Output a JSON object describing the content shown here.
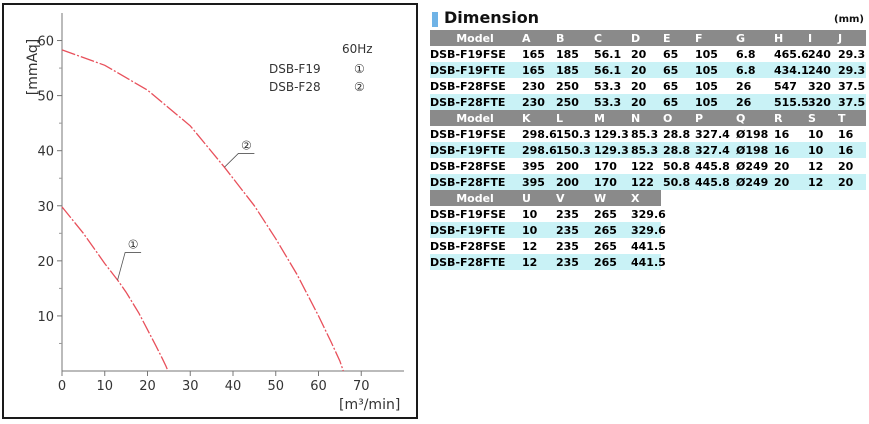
{
  "chart_data": {
    "type": "line",
    "xlabel": "[m³/min]",
    "ylabel": "[mmAq]",
    "xlim": [
      0,
      80
    ],
    "ylim": [
      0,
      65
    ],
    "xticks": [
      0,
      10,
      20,
      30,
      40,
      50,
      60,
      70
    ],
    "yticks": [
      10,
      20,
      30,
      40,
      50,
      60
    ],
    "frequency_label": "60Hz",
    "legend": [
      {
        "model": "DSB-F19",
        "marker": "①"
      },
      {
        "model": "DSB-F28",
        "marker": "②"
      }
    ],
    "series": [
      {
        "name": "①",
        "color": "#e8505b",
        "x": [
          0,
          5,
          10,
          13,
          15,
          18,
          20,
          22,
          23.5,
          24.3,
          24.8
        ],
        "y": [
          29.8,
          25,
          19.5,
          16.5,
          14.3,
          10.5,
          7.5,
          4.5,
          2.2,
          0.9,
          0
        ]
      },
      {
        "name": "②",
        "color": "#e8505b",
        "x": [
          0,
          10,
          20,
          30,
          38,
          45,
          50,
          55,
          60,
          63,
          65,
          65.8
        ],
        "y": [
          58.3,
          55.5,
          51,
          44.5,
          37,
          30,
          24,
          17.5,
          10,
          5.2,
          1.8,
          0
        ]
      }
    ]
  },
  "dimension": {
    "title": "Dimension",
    "unit": "(mm)",
    "sections": [
      {
        "headers": [
          "Model",
          "A",
          "B",
          "C",
          "D",
          "E",
          "F",
          "G",
          "H",
          "I",
          "J"
        ],
        "rows": [
          [
            "DSB-F19FSE",
            "165",
            "185",
            "56.1",
            "20",
            "65",
            "105",
            "6.8",
            "465.6",
            "240",
            "29.3"
          ],
          [
            "DSB-F19FTE",
            "165",
            "185",
            "56.1",
            "20",
            "65",
            "105",
            "6.8",
            "434.1",
            "240",
            "29.3"
          ],
          [
            "DSB-F28FSE",
            "230",
            "250",
            "53.3",
            "20",
            "65",
            "105",
            "26",
            "547",
            "320",
            "37.5"
          ],
          [
            "DSB-F28FTE",
            "230",
            "250",
            "53.3",
            "20",
            "65",
            "105",
            "26",
            "515.5",
            "320",
            "37.5"
          ]
        ]
      },
      {
        "headers": [
          "Model",
          "K",
          "L",
          "M",
          "N",
          "O",
          "P",
          "Q",
          "R",
          "S",
          "T"
        ],
        "rows": [
          [
            "DSB-F19FSE",
            "298.6",
            "150.3",
            "129.3",
            "85.3",
            "28.8",
            "327.4",
            "Ø198",
            "16",
            "10",
            "16"
          ],
          [
            "DSB-F19FTE",
            "298.6",
            "150.3",
            "129.3",
            "85.3",
            "28.8",
            "327.4",
            "Ø198",
            "16",
            "10",
            "16"
          ],
          [
            "DSB-F28FSE",
            "395",
            "200",
            "170",
            "122",
            "50.8",
            "445.8",
            "Ø249",
            "20",
            "12",
            "20"
          ],
          [
            "DSB-F28FTE",
            "395",
            "200",
            "170",
            "122",
            "50.8",
            "445.8",
            "Ø249",
            "20",
            "12",
            "20"
          ]
        ]
      },
      {
        "headers": [
          "Model",
          "U",
          "V",
          "W",
          "X"
        ],
        "rows": [
          [
            "DSB-F19FSE",
            "10",
            "235",
            "265",
            "329.6"
          ],
          [
            "DSB-F19FTE",
            "10",
            "235",
            "265",
            "329.6"
          ],
          [
            "DSB-F28FSE",
            "12",
            "235",
            "265",
            "441.5"
          ],
          [
            "DSB-F28FTE",
            "12",
            "235",
            "265",
            "441.5"
          ]
        ]
      }
    ]
  }
}
